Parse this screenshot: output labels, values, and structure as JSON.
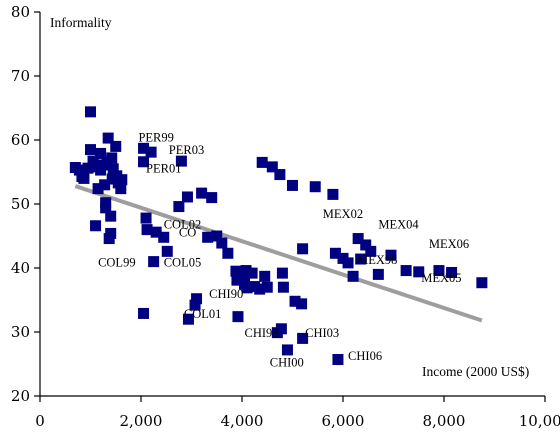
{
  "chart_data": {
    "type": "scatter",
    "ylabel": "Informality",
    "xlabel": "Income (2000 US$)",
    "xlim": [
      0,
      10000
    ],
    "ylim": [
      20,
      80
    ],
    "xticks": [
      0,
      2000,
      4000,
      6000,
      8000,
      10000
    ],
    "xtick_labels": [
      "0",
      "2,000",
      "4,000",
      "6,000",
      "8,000",
      "10,000"
    ],
    "yticks": [
      20,
      30,
      40,
      50,
      60,
      70,
      80
    ],
    "ytick_labels": [
      "20",
      "30",
      "40",
      "50",
      "60",
      "70",
      "80"
    ],
    "grid": false,
    "marker_color": "#000080",
    "trendline_color": "#9e9e9e",
    "trendline": {
      "x": [
        700,
        8750
      ],
      "y": [
        52.8,
        31.8
      ]
    },
    "points": [
      {
        "x": 700,
        "y": 55.7
      },
      {
        "x": 780,
        "y": 55.3
      },
      {
        "x": 830,
        "y": 54.3
      },
      {
        "x": 870,
        "y": 54.0
      },
      {
        "x": 950,
        "y": 55.6
      },
      {
        "x": 1000,
        "y": 58.5
      },
      {
        "x": 1000,
        "y": 64.4
      },
      {
        "x": 1050,
        "y": 56.7
      },
      {
        "x": 1100,
        "y": 55.8
      },
      {
        "x": 1100,
        "y": 46.6
      },
      {
        "x": 1150,
        "y": 52.4
      },
      {
        "x": 1200,
        "y": 57.9
      },
      {
        "x": 1200,
        "y": 55.3
      },
      {
        "x": 1250,
        "y": 56.1
      },
      {
        "x": 1280,
        "y": 53.0
      },
      {
        "x": 1300,
        "y": 49.4
      },
      {
        "x": 1300,
        "y": 50.2
      },
      {
        "x": 1330,
        "y": 56.6
      },
      {
        "x": 1350,
        "y": 60.3
      },
      {
        "x": 1370,
        "y": 44.6
      },
      {
        "x": 1400,
        "y": 45.4
      },
      {
        "x": 1400,
        "y": 48.1
      },
      {
        "x": 1420,
        "y": 57.2
      },
      {
        "x": 1430,
        "y": 53.9
      },
      {
        "x": 1450,
        "y": 55.5
      },
      {
        "x": 1500,
        "y": 59.0
      },
      {
        "x": 1520,
        "y": 54.4
      },
      {
        "x": 1550,
        "y": 53.3
      },
      {
        "x": 1600,
        "y": 52.4
      },
      {
        "x": 1620,
        "y": 53.8
      },
      {
        "x": 2050,
        "y": 58.7
      },
      {
        "x": 2050,
        "y": 56.6
      },
      {
        "x": 2050,
        "y": 32.9
      },
      {
        "x": 2100,
        "y": 47.8
      },
      {
        "x": 2120,
        "y": 46.0
      },
      {
        "x": 2200,
        "y": 58.1
      },
      {
        "x": 2250,
        "y": 41.0
      },
      {
        "x": 2300,
        "y": 45.6
      },
      {
        "x": 2450,
        "y": 44.8
      },
      {
        "x": 2520,
        "y": 42.6
      },
      {
        "x": 2750,
        "y": 49.6
      },
      {
        "x": 2800,
        "y": 56.7
      },
      {
        "x": 2920,
        "y": 51.1
      },
      {
        "x": 2940,
        "y": 32.0
      },
      {
        "x": 3070,
        "y": 34.2
      },
      {
        "x": 3100,
        "y": 35.2
      },
      {
        "x": 3200,
        "y": 51.7
      },
      {
        "x": 3320,
        "y": 44.8
      },
      {
        "x": 3400,
        "y": 51.0
      },
      {
        "x": 3500,
        "y": 45.0
      },
      {
        "x": 3600,
        "y": 43.9
      },
      {
        "x": 3720,
        "y": 42.3
      },
      {
        "x": 3880,
        "y": 39.5
      },
      {
        "x": 3900,
        "y": 38.1
      },
      {
        "x": 3920,
        "y": 32.4
      },
      {
        "x": 4000,
        "y": 38.5
      },
      {
        "x": 4050,
        "y": 37.5
      },
      {
        "x": 4080,
        "y": 39.6
      },
      {
        "x": 4100,
        "y": 36.9
      },
      {
        "x": 4200,
        "y": 39.2
      },
      {
        "x": 4250,
        "y": 37.1
      },
      {
        "x": 4350,
        "y": 36.7
      },
      {
        "x": 4400,
        "y": 56.5
      },
      {
        "x": 4450,
        "y": 38.7
      },
      {
        "x": 4500,
        "y": 37.0
      },
      {
        "x": 4600,
        "y": 55.8
      },
      {
        "x": 4700,
        "y": 29.9
      },
      {
        "x": 4750,
        "y": 54.6
      },
      {
        "x": 4780,
        "y": 30.5
      },
      {
        "x": 4800,
        "y": 39.2
      },
      {
        "x": 4820,
        "y": 37.0
      },
      {
        "x": 4900,
        "y": 27.2
      },
      {
        "x": 5000,
        "y": 52.9
      },
      {
        "x": 5050,
        "y": 34.8
      },
      {
        "x": 5180,
        "y": 34.4
      },
      {
        "x": 5200,
        "y": 43.0
      },
      {
        "x": 5200,
        "y": 29.0
      },
      {
        "x": 5450,
        "y": 52.7
      },
      {
        "x": 5800,
        "y": 51.5
      },
      {
        "x": 5850,
        "y": 42.3
      },
      {
        "x": 5900,
        "y": 25.7
      },
      {
        "x": 6000,
        "y": 41.5
      },
      {
        "x": 6100,
        "y": 40.8
      },
      {
        "x": 6200,
        "y": 38.7
      },
      {
        "x": 6300,
        "y": 44.6
      },
      {
        "x": 6350,
        "y": 41.4
      },
      {
        "x": 6450,
        "y": 43.6
      },
      {
        "x": 6550,
        "y": 42.6
      },
      {
        "x": 6700,
        "y": 39.0
      },
      {
        "x": 6950,
        "y": 42.0
      },
      {
        "x": 7250,
        "y": 39.6
      },
      {
        "x": 7500,
        "y": 39.4
      },
      {
        "x": 7900,
        "y": 39.6
      },
      {
        "x": 8150,
        "y": 39.3
      },
      {
        "x": 8750,
        "y": 37.7
      }
    ],
    "point_labels": [
      {
        "text": "PER99",
        "x": 1950,
        "y": 59.8
      },
      {
        "text": "PER03",
        "x": 2550,
        "y": 57.8
      },
      {
        "text": "PER01",
        "x": 2100,
        "y": 54.9
      },
      {
        "text": "COL02",
        "x": 2450,
        "y": 46.2
      },
      {
        "text": "CO",
        "x": 2750,
        "y": 44.9
      },
      {
        "text": "COL99",
        "x": 1150,
        "y": 40.2
      },
      {
        "text": "COL05",
        "x": 2450,
        "y": 40.2
      },
      {
        "text": "COL01",
        "x": 2850,
        "y": 32.2
      },
      {
        "text": "CHI90",
        "x": 3350,
        "y": 35.3
      },
      {
        "text": "CHI98",
        "x": 4050,
        "y": 29.2
      },
      {
        "text": "CHI03",
        "x": 5250,
        "y": 29.2
      },
      {
        "text": "CHI00",
        "x": 4550,
        "y": 24.6
      },
      {
        "text": "CHI06",
        "x": 6100,
        "y": 25.6
      },
      {
        "text": "MEX02",
        "x": 5600,
        "y": 47.8
      },
      {
        "text": "MEX04",
        "x": 6700,
        "y": 46.2
      },
      {
        "text": "MEX98",
        "x": 6280,
        "y": 40.6
      },
      {
        "text": "MEX06",
        "x": 7700,
        "y": 43.1
      },
      {
        "text": "MEX05",
        "x": 7550,
        "y": 37.8
      }
    ]
  }
}
